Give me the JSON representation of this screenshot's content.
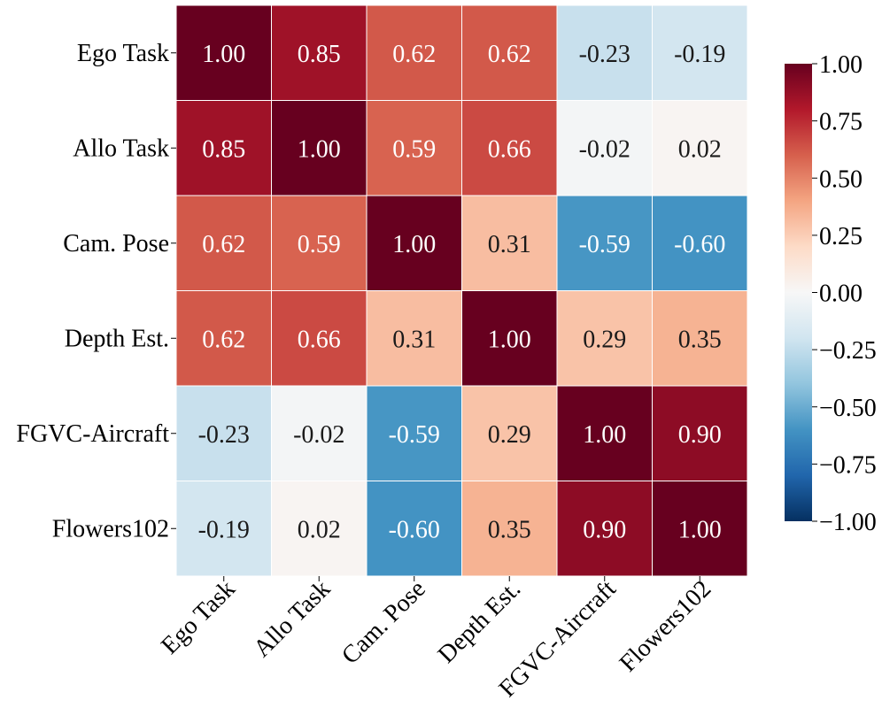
{
  "chart_data": {
    "type": "heatmap",
    "title": "",
    "xlabel": "",
    "ylabel": "",
    "row_labels": [
      "Ego Task",
      "Allo Task",
      "Cam. Pose",
      "Depth Est.",
      "FGVC-Aircraft",
      "Flowers102"
    ],
    "col_labels": [
      "Ego Task",
      "Allo Task",
      "Cam. Pose",
      "Depth Est.",
      "FGVC-Aircraft",
      "Flowers102"
    ],
    "values": [
      [
        1.0,
        0.85,
        0.62,
        0.62,
        -0.23,
        -0.19
      ],
      [
        0.85,
        1.0,
        0.59,
        0.66,
        -0.02,
        0.02
      ],
      [
        0.62,
        0.59,
        1.0,
        0.31,
        -0.59,
        -0.6
      ],
      [
        0.62,
        0.66,
        0.31,
        1.0,
        0.29,
        0.35
      ],
      [
        -0.23,
        -0.02,
        -0.59,
        0.29,
        1.0,
        0.9
      ],
      [
        -0.19,
        0.02,
        -0.6,
        0.35,
        0.9,
        1.0
      ]
    ],
    "value_labels": [
      [
        "1.00",
        "0.85",
        "0.62",
        "0.62",
        "-0.23",
        "-0.19"
      ],
      [
        "0.85",
        "1.00",
        "0.59",
        "0.66",
        "-0.02",
        "0.02"
      ],
      [
        "0.62",
        "0.59",
        "1.00",
        "0.31",
        "-0.59",
        "-0.60"
      ],
      [
        "0.62",
        "0.66",
        "0.31",
        "1.00",
        "0.29",
        "0.35"
      ],
      [
        "-0.23",
        "-0.02",
        "-0.59",
        "0.29",
        "1.00",
        "0.90"
      ],
      [
        "-0.19",
        "0.02",
        "-0.60",
        "0.35",
        "0.90",
        "1.00"
      ]
    ],
    "colorbar": {
      "vmin": -1.0,
      "vmax": 1.0,
      "colormap": "RdBu_r",
      "ticks": [
        1.0,
        0.75,
        0.5,
        0.25,
        0.0,
        -0.25,
        -0.5,
        -0.75,
        -1.0
      ],
      "tick_labels": [
        "1.00",
        "0.75",
        "0.50",
        "0.25",
        "0.00",
        "−0.25",
        "−0.50",
        "−0.75",
        "−1.00"
      ]
    },
    "colors": {
      "cmap_stops": [
        "#053061",
        "#2166ac",
        "#4393c3",
        "#92c5de",
        "#d1e5f0",
        "#f7f7f7",
        "#fddbc7",
        "#f4a582",
        "#d6604d",
        "#b2182b",
        "#67001f"
      ],
      "light_text": "#ffffff",
      "dark_text": "#1a1a1a",
      "cell_border": "#ffffff"
    }
  }
}
